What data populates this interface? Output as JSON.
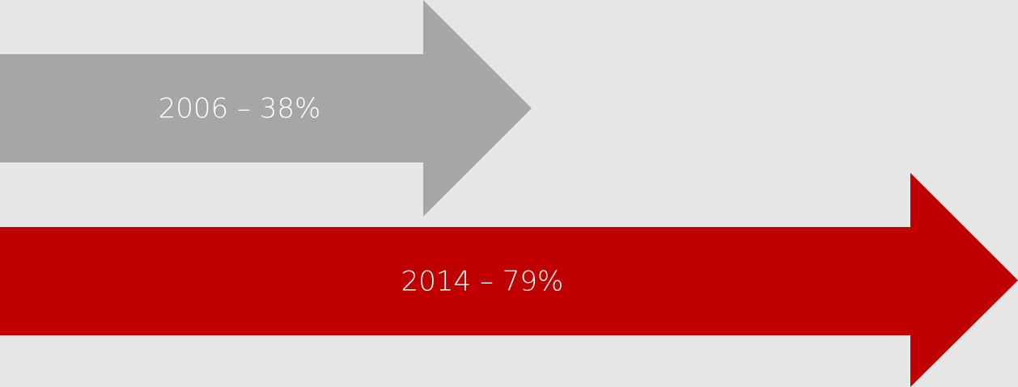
{
  "arrows": [
    {
      "label": "2006 – 38%"
    },
    {
      "label": "2014 – 79%"
    }
  ]
}
